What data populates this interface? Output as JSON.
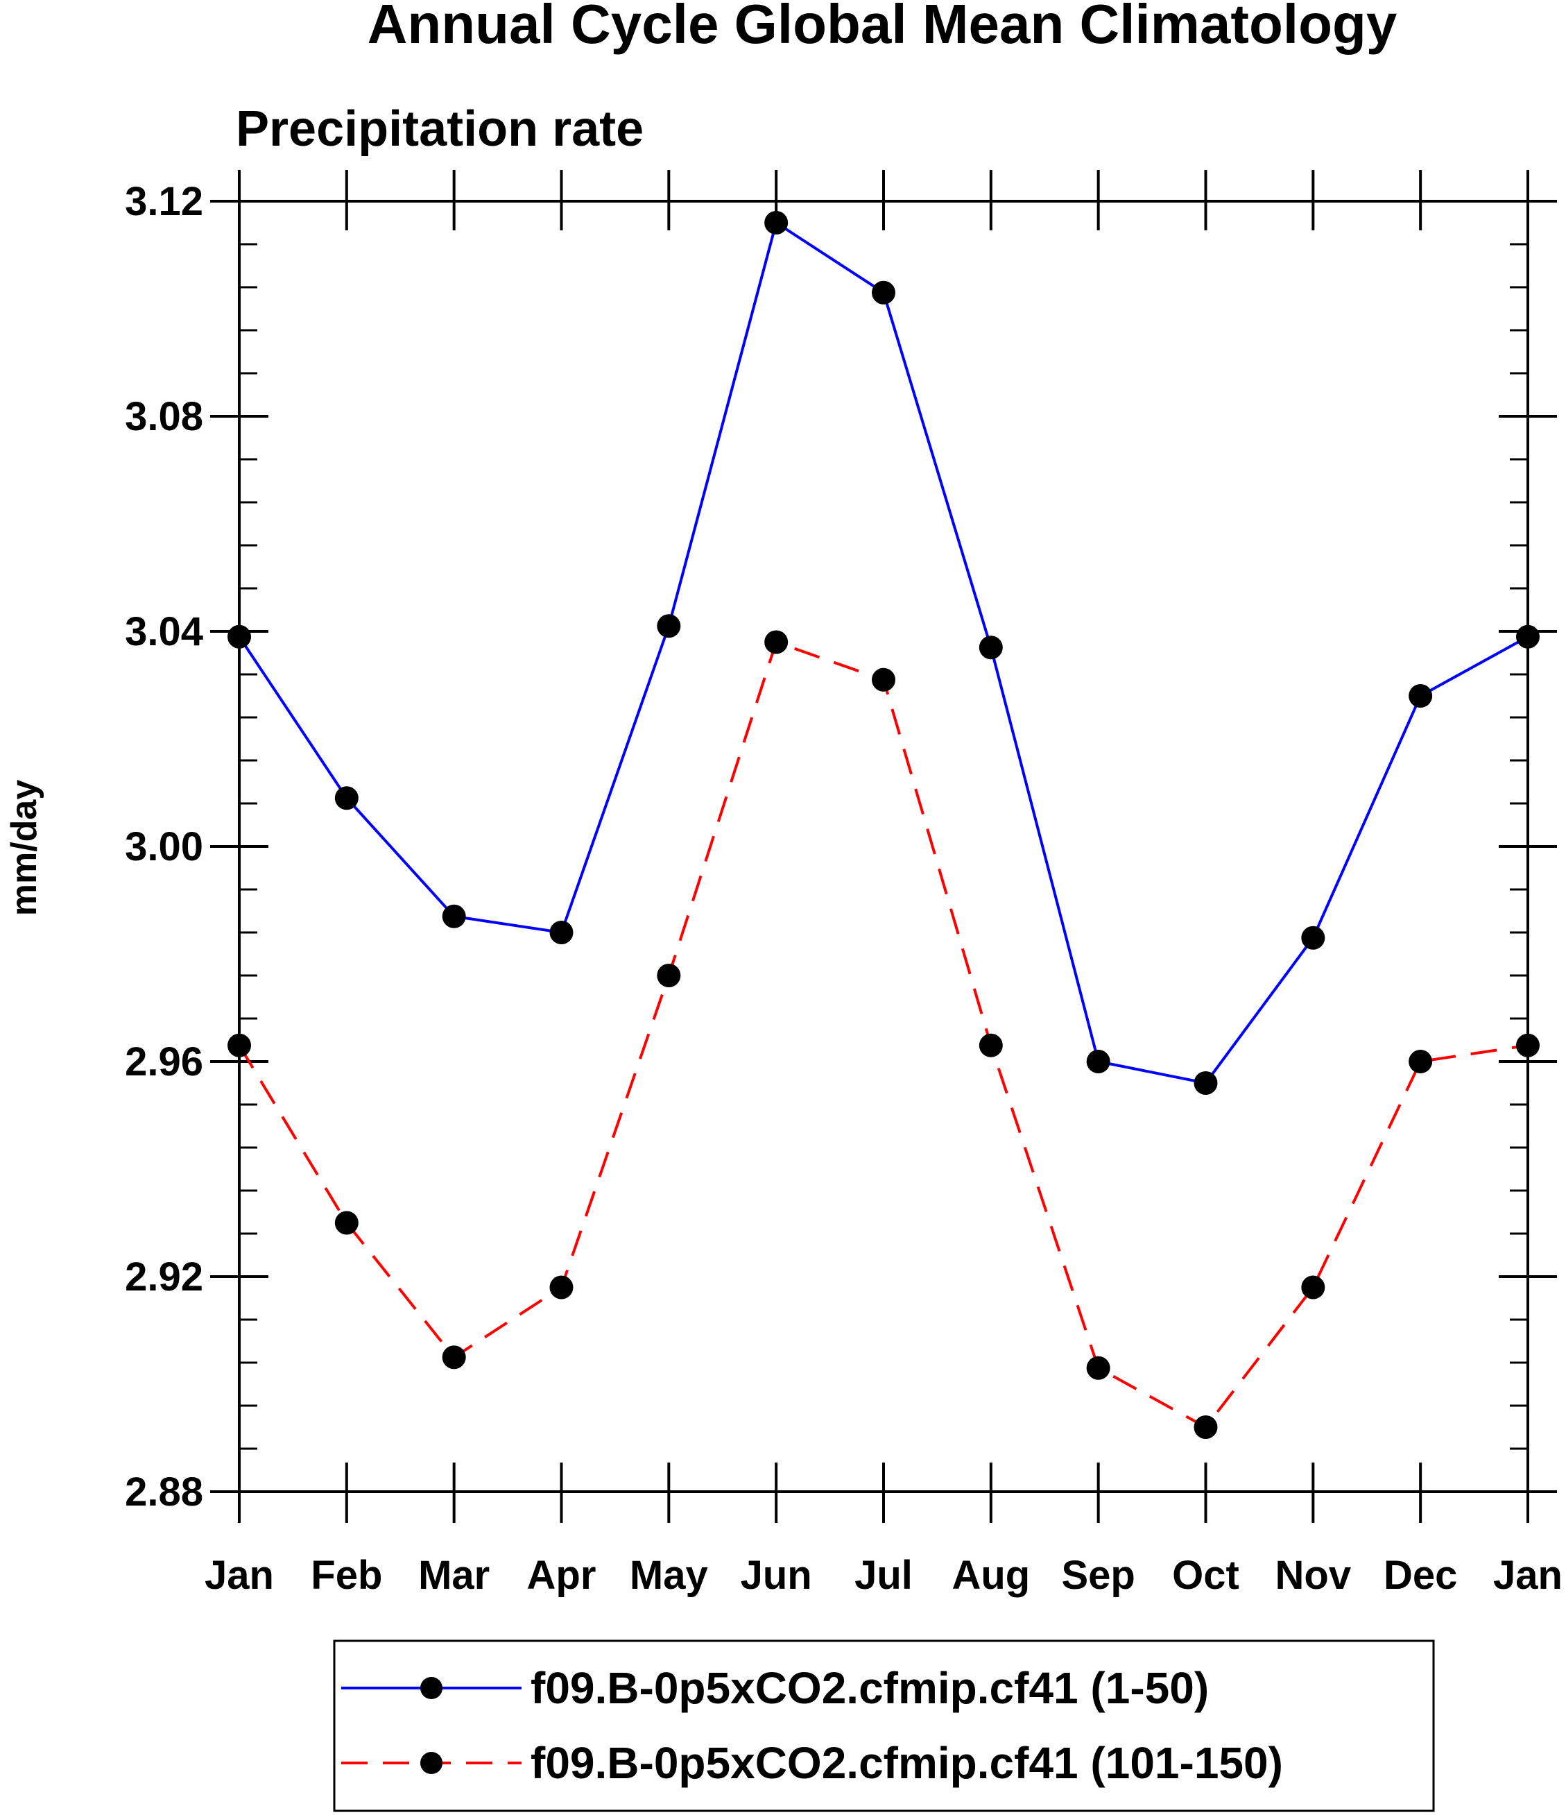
{
  "chart_data": {
    "type": "line",
    "title": "Annual Cycle Global Mean Climatology",
    "subtitle": "Precipitation rate",
    "xlabel": "",
    "ylabel": "mm/day",
    "categories": [
      "Jan",
      "Feb",
      "Mar",
      "Apr",
      "May",
      "Jun",
      "Jul",
      "Aug",
      "Sep",
      "Oct",
      "Nov",
      "Dec",
      "Jan"
    ],
    "ylim": [
      2.88,
      3.12
    ],
    "yticks": [
      "3.12",
      "3.08",
      "3.04",
      "3.00",
      "2.96",
      "2.92",
      "2.88"
    ],
    "ytick_values": [
      3.12,
      3.08,
      3.04,
      3.0,
      2.96,
      2.92,
      2.88
    ],
    "grid": false,
    "legend_position": "bottom",
    "series": [
      {
        "name": "f09.B-0p5xCO2.cfmip.cf41 (1-50)",
        "color": "#0000ff",
        "dash": "solid",
        "marker": "filled-circle",
        "values": [
          3.039,
          3.009,
          2.987,
          2.984,
          3.041,
          3.116,
          3.103,
          3.037,
          2.96,
          2.956,
          2.983,
          3.028,
          3.039
        ]
      },
      {
        "name": "f09.B-0p5xCO2.cfmip.cf41 (101-150)",
        "color": "#ff0000",
        "dash": "dashed",
        "marker": "filled-circle",
        "values": [
          2.963,
          2.93,
          2.905,
          2.918,
          2.976,
          3.038,
          3.031,
          2.963,
          2.903,
          2.892,
          2.918,
          2.96,
          2.963
        ]
      }
    ]
  }
}
